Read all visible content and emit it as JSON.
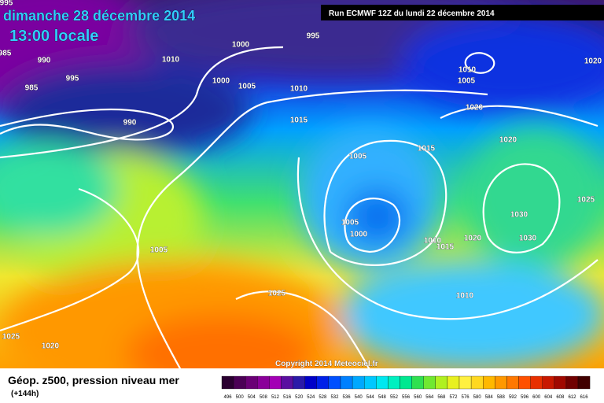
{
  "header": {
    "title": "dimanche 28 décembre 2014",
    "subtitle": "13:00 locale",
    "run": "Run ECMWF 12Z du lundi 22 décembre 2014"
  },
  "isobars": [
    "995",
    "985",
    "990",
    "995",
    "985",
    "990",
    "1000",
    "995",
    "1010",
    "1000",
    "1005",
    "1010",
    "1015",
    "1010",
    "1005",
    "1020",
    "1020",
    "1020",
    "1015",
    "1005",
    "1025",
    "1030",
    "1030",
    "1020",
    "1005",
    "1000",
    "1010",
    "1015",
    "1010",
    "1005",
    "1025",
    "1025",
    "1020"
  ],
  "copyright": "Copyright 2014 Meteociel.fr",
  "footer": {
    "title": "Géop. z500, pression niveau mer",
    "lead": "(+144h)"
  },
  "scale": {
    "values": [
      496,
      500,
      504,
      508,
      512,
      516,
      520,
      524,
      528,
      532,
      536,
      540,
      544,
      548,
      552,
      556,
      560,
      564,
      568,
      572,
      576,
      580,
      584,
      588,
      592,
      596,
      600,
      604,
      608,
      612,
      616
    ],
    "colors": [
      "#2a0030",
      "#4b0055",
      "#6a0075",
      "#8a0099",
      "#a300b5",
      "#5a0fa0",
      "#2b1aa8",
      "#0000c8",
      "#0020e8",
      "#0050ff",
      "#0080ff",
      "#00a8ff",
      "#00c8ff",
      "#00e8f0",
      "#00f0c0",
      "#00e890",
      "#30e050",
      "#70e830",
      "#b0f020",
      "#e8f020",
      "#fff040",
      "#ffd820",
      "#ffb800",
      "#ff9800",
      "#ff7800",
      "#ff5000",
      "#e83000",
      "#c81800",
      "#a00800",
      "#700000",
      "#400000"
    ]
  }
}
